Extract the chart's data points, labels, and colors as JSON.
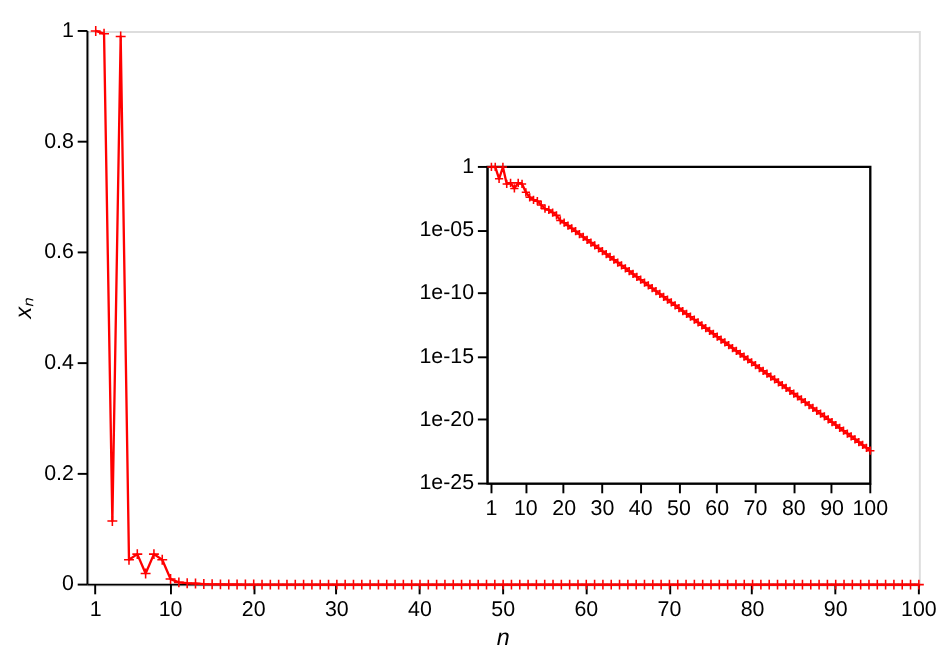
{
  "chart_data": [
    {
      "type": "line",
      "xlabel": "n",
      "ylabel": "xₙ",
      "xlim": [
        0,
        100
      ],
      "ylim": [
        0,
        1
      ],
      "xticks": [
        1,
        10,
        20,
        30,
        40,
        50,
        60,
        70,
        80,
        90,
        100
      ],
      "yticks": [
        0,
        0.2,
        0.4,
        0.6,
        0.8,
        1
      ],
      "grid": false,
      "marker": "cross",
      "line_style": "solid",
      "x": [
        1,
        2,
        3,
        4,
        5,
        6,
        7,
        8,
        9,
        10,
        11,
        12,
        13,
        14,
        15,
        16,
        17,
        18,
        19,
        20,
        21,
        22,
        23,
        24,
        25,
        26,
        27,
        28,
        29,
        30,
        31,
        32,
        33,
        34,
        35,
        36,
        37,
        38,
        39,
        40,
        41,
        42,
        43,
        44,
        45,
        46,
        47,
        48,
        49,
        50,
        51,
        52,
        53,
        54,
        55,
        56,
        57,
        58,
        59,
        60,
        61,
        62,
        63,
        64,
        65,
        66,
        67,
        68,
        69,
        70,
        71,
        72,
        73,
        74,
        75,
        76,
        77,
        78,
        79,
        80,
        81,
        82,
        83,
        84,
        85,
        86,
        87,
        88,
        89,
        90,
        91,
        92,
        93,
        94,
        95,
        96,
        97,
        98,
        99,
        100
      ],
      "series": [
        {
          "color": "#ff0000",
          "values": [
            1,
            0.995,
            0.115,
            0.99,
            0.045,
            0.055,
            0.02,
            0.055,
            0.045,
            0.01,
            0.004,
            0.0025,
            0.002,
            0.001,
            0.0005,
            0.0004,
            0.00025,
            0.00015,
            6e-05,
            3.98e-05,
            2.37e-05,
            1.41e-05,
            8.41e-06,
            5.01e-06,
            2.99e-06,
            1.78e-06,
            1.06e-06,
            6.31e-07,
            3.76e-07,
            2.24e-07,
            1.33e-07,
            7.94e-08,
            4.73e-08,
            2.82e-08,
            1.68e-08,
            1e-08,
            5.96e-09,
            3.55e-09,
            2.11e-09,
            1.26e-09,
            7.5e-10,
            4.47e-10,
            2.66e-10,
            1.58e-10,
            9.44e-11,
            5.62e-11,
            3.35e-11,
            2e-11,
            1.19e-11,
            7.08e-12,
            4.22e-12,
            2.51e-12,
            1.5e-12,
            8.91e-13,
            5.31e-13,
            3.16e-13,
            1.88e-13,
            1.12e-13,
            6.68e-14,
            3.98e-14,
            2.37e-14,
            1.41e-14,
            8.41e-15,
            5.01e-15,
            2.99e-15,
            1.78e-15,
            1.06e-15,
            6.31e-16,
            3.76e-16,
            2.24e-16,
            1.33e-16,
            7.94e-17,
            4.73e-17,
            2.82e-17,
            1.68e-17,
            1e-17,
            5.96e-18,
            3.55e-18,
            2.11e-18,
            1.26e-18,
            7.5e-19,
            4.47e-19,
            2.66e-19,
            1.58e-19,
            9.44e-20,
            5.62e-20,
            3.35e-20,
            2e-20,
            1.19e-20,
            7.08e-21,
            4.22e-21,
            2.51e-21,
            1.5e-21,
            8.91e-22,
            5.31e-22,
            3.16e-22,
            1.88e-22,
            1.12e-22,
            6.68e-23,
            3.98e-23
          ]
        }
      ]
    },
    {
      "type": "line",
      "log": "y",
      "xlim": [
        0,
        100
      ],
      "ylim": [
        1e-25,
        1
      ],
      "xticks": [
        1,
        10,
        20,
        30,
        40,
        50,
        60,
        70,
        80,
        90,
        100
      ],
      "yticks": [
        1,
        {
          "value": 1e-05,
          "label": "1e-05"
        },
        {
          "value": 1e-10,
          "label": "1e-10"
        },
        {
          "value": 1e-15,
          "label": "1e-15"
        },
        {
          "value": 1e-20,
          "label": "1e-20"
        },
        {
          "value": 1e-25,
          "label": "1e-25"
        }
      ],
      "grid": false,
      "marker": "cross",
      "line_style": "solid",
      "x": [
        1,
        2,
        3,
        4,
        5,
        6,
        7,
        8,
        9,
        10,
        11,
        12,
        13,
        14,
        15,
        16,
        17,
        18,
        19,
        20,
        21,
        22,
        23,
        24,
        25,
        26,
        27,
        28,
        29,
        30,
        31,
        32,
        33,
        34,
        35,
        36,
        37,
        38,
        39,
        40,
        41,
        42,
        43,
        44,
        45,
        46,
        47,
        48,
        49,
        50,
        51,
        52,
        53,
        54,
        55,
        56,
        57,
        58,
        59,
        60,
        61,
        62,
        63,
        64,
        65,
        66,
        67,
        68,
        69,
        70,
        71,
        72,
        73,
        74,
        75,
        76,
        77,
        78,
        79,
        80,
        81,
        82,
        83,
        84,
        85,
        86,
        87,
        88,
        89,
        90,
        91,
        92,
        93,
        94,
        95,
        96,
        97,
        98,
        99,
        100
      ],
      "series": [
        {
          "color": "#ff0000",
          "values": [
            1,
            0.995,
            0.115,
            0.99,
            0.045,
            0.055,
            0.02,
            0.055,
            0.045,
            0.01,
            0.004,
            0.0025,
            0.002,
            0.001,
            0.0005,
            0.0004,
            0.00025,
            0.00015,
            6e-05,
            3.98e-05,
            2.37e-05,
            1.41e-05,
            8.41e-06,
            5.01e-06,
            2.99e-06,
            1.78e-06,
            1.06e-06,
            6.31e-07,
            3.76e-07,
            2.24e-07,
            1.33e-07,
            7.94e-08,
            4.73e-08,
            2.82e-08,
            1.68e-08,
            1e-08,
            5.96e-09,
            3.55e-09,
            2.11e-09,
            1.26e-09,
            7.5e-10,
            4.47e-10,
            2.66e-10,
            1.58e-10,
            9.44e-11,
            5.62e-11,
            3.35e-11,
            2e-11,
            1.19e-11,
            7.08e-12,
            4.22e-12,
            2.51e-12,
            1.5e-12,
            8.91e-13,
            5.31e-13,
            3.16e-13,
            1.88e-13,
            1.12e-13,
            6.68e-14,
            3.98e-14,
            2.37e-14,
            1.41e-14,
            8.41e-15,
            5.01e-15,
            2.99e-15,
            1.78e-15,
            1.06e-15,
            6.31e-16,
            3.76e-16,
            2.24e-16,
            1.33e-16,
            7.94e-17,
            4.73e-17,
            2.82e-17,
            1.68e-17,
            1e-17,
            5.96e-18,
            3.55e-18,
            2.11e-18,
            1.26e-18,
            7.5e-19,
            4.47e-19,
            2.66e-19,
            1.58e-19,
            9.44e-20,
            5.62e-20,
            3.35e-20,
            2e-20,
            1.19e-20,
            7.08e-21,
            4.22e-21,
            2.51e-21,
            1.5e-21,
            8.91e-22,
            5.31e-22,
            3.16e-22,
            1.88e-22,
            1.12e-22,
            6.68e-23,
            3.98e-23
          ]
        }
      ]
    }
  ]
}
